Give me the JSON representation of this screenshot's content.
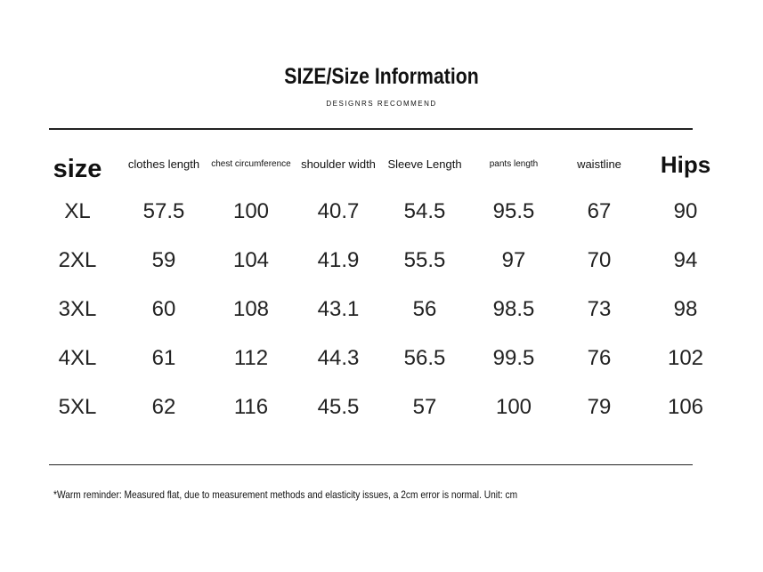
{
  "header": {
    "title": "SIZE/Size Information",
    "subtitle": "DESIGNRS RECOMMEND"
  },
  "table": {
    "columns": [
      "size",
      "clothes length",
      "chest circumference",
      "shoulder width",
      "Sleeve Length",
      "pants length",
      "waistline",
      "Hips"
    ],
    "rows": [
      [
        "XL",
        57.5,
        100,
        40.7,
        54.5,
        95.5,
        67,
        90
      ],
      [
        "2XL",
        59,
        104,
        41.9,
        55.5,
        97,
        70,
        94
      ],
      [
        "3XL",
        60,
        108,
        43.1,
        56,
        98.5,
        73,
        98
      ],
      [
        "4XL",
        61,
        112,
        44.3,
        56.5,
        99.5,
        76,
        102
      ],
      [
        "5XL",
        62,
        116,
        45.5,
        57,
        100,
        79,
        106
      ]
    ]
  },
  "footnote": "*Warm reminder: Measured flat, due to measurement methods and elasticity issues, a 2cm error is normal. Unit: cm"
}
